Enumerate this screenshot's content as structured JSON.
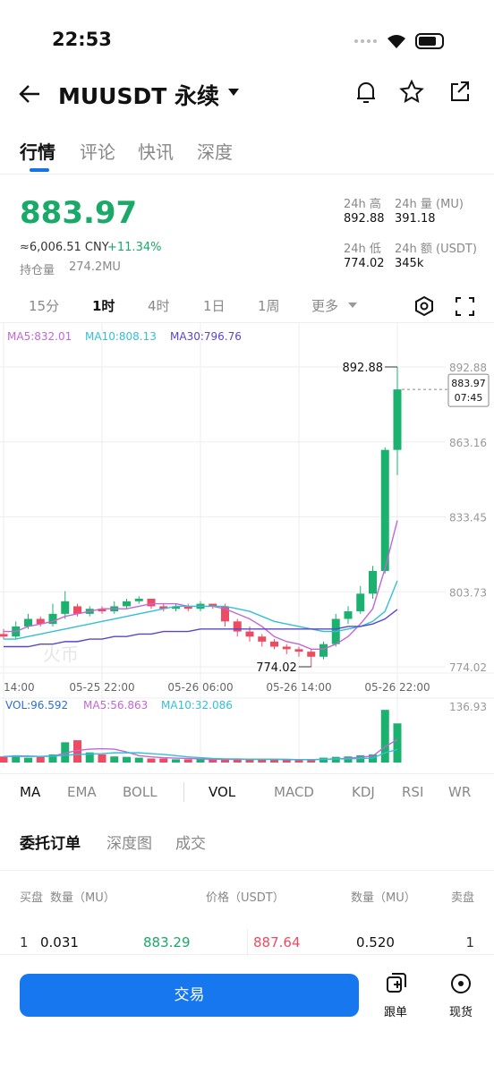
{
  "status_bar": {
    "time": "22:53"
  },
  "header": {
    "title": "MUUSDT 永续"
  },
  "tabs": [
    "行情",
    "评论",
    "快讯",
    "深度"
  ],
  "ticker": {
    "price": "883.97",
    "cny": "≈6,006.51 CNY",
    "change": "+11.34%",
    "open_interest_label": "持仓量",
    "open_interest": "274.2MU",
    "stats": [
      {
        "label": "24h 高",
        "value": "892.88"
      },
      {
        "label": "24h 量 (MU)",
        "value": "391.18"
      },
      {
        "label": "24h 低",
        "value": "774.02"
      },
      {
        "label": "24h 额 (USDT)",
        "value": "345k"
      }
    ]
  },
  "intervals": [
    "15分",
    "1时",
    "4时",
    "1日",
    "1周",
    "更多"
  ],
  "chart_data": {
    "type": "candlestick",
    "categories": [
      "14:00",
      null,
      null,
      null,
      null,
      null,
      null,
      null,
      "05-25 22:00",
      null,
      null,
      null,
      null,
      null,
      null,
      null,
      "05-26 06:00",
      null,
      null,
      null,
      null,
      null,
      null,
      null,
      "05-26 14:00",
      null,
      null,
      null,
      null,
      null,
      null,
      null,
      "05-26 22:00"
    ],
    "open": [
      787,
      786,
      790,
      793,
      791,
      795,
      798,
      795,
      797,
      796,
      798,
      800,
      801,
      798,
      797,
      798,
      797,
      799,
      798,
      792,
      788,
      786,
      784,
      782,
      781,
      780,
      778,
      783,
      793,
      796,
      803,
      812,
      860
    ],
    "high": [
      789,
      792,
      795,
      794,
      799,
      804,
      799,
      798,
      798,
      800,
      801,
      802,
      801,
      799,
      799,
      799,
      800,
      799,
      799,
      793,
      790,
      787,
      785,
      783,
      782,
      781,
      784,
      795,
      798,
      806,
      814,
      861,
      892.88
    ],
    "low": [
      785,
      785,
      789,
      790,
      790,
      793,
      794,
      794,
      795,
      795,
      797,
      799,
      797,
      796,
      796,
      796,
      796,
      797,
      790,
      786,
      784,
      782,
      781,
      779,
      778,
      774.02,
      777,
      782,
      791,
      795,
      801,
      811,
      850
    ],
    "close": [
      786,
      790,
      793,
      791,
      795,
      800,
      795,
      797,
      796,
      798,
      800,
      801,
      798,
      797,
      798,
      797,
      799,
      798,
      792,
      788,
      786,
      784,
      782,
      781,
      780,
      778,
      783,
      793,
      796,
      803,
      812,
      860,
      883.97
    ],
    "up_color": "#1bb16f",
    "down_color": "#ee4b62",
    "series": [
      {
        "name": "MA5:832.01",
        "color": "#c366d6",
        "values": [
          788,
          788,
          790,
          791,
          792,
          794,
          795,
          796,
          797,
          797,
          797,
          798,
          799,
          799,
          799,
          798,
          798,
          798,
          797,
          795,
          793,
          790,
          786,
          784,
          783,
          781,
          781,
          783,
          786,
          791,
          797,
          813,
          832.01
        ]
      },
      {
        "name": "MA10:808.13",
        "color": "#33bfd6",
        "values": [
          785,
          785,
          786,
          787,
          788,
          789,
          790,
          791,
          792,
          793,
          794,
          795,
          796,
          797,
          798,
          798,
          798,
          798,
          798,
          797,
          796,
          794,
          792,
          791,
          790,
          789,
          788,
          788,
          789,
          790,
          792,
          796,
          808.13
        ]
      },
      {
        "name": "MA30:796.76",
        "color": "#5846cf",
        "values": [
          782,
          782,
          782,
          783,
          783,
          784,
          784,
          785,
          785,
          786,
          786,
          787,
          787,
          788,
          788,
          788,
          789,
          789,
          789,
          789,
          789,
          789,
          789,
          789,
          789,
          789,
          789,
          789,
          790,
          790,
          791,
          793,
          796.76
        ]
      }
    ],
    "ylim": [
      774.02,
      892.88
    ],
    "yticks": [
      774.02,
      803.73,
      833.45,
      863.16,
      892.88
    ],
    "high_label": "892.88",
    "low_label": "774.02",
    "last_price": "883.97",
    "countdown": "07:45",
    "watermark": "火币",
    "volume": {
      "name": "VOL:96.592",
      "values": [
        15,
        18,
        12,
        14,
        20,
        50,
        55,
        25,
        20,
        15,
        14,
        12,
        10,
        10,
        8,
        8,
        8,
        8,
        10,
        8,
        8,
        7,
        7,
        7,
        6,
        8,
        12,
        14,
        15,
        18,
        20,
        130,
        96.592
      ],
      "ylim": [
        0,
        136.93
      ],
      "yticks": [
        136.93
      ],
      "series": [
        {
          "name": "MA5:56.863",
          "color": "#c366d6",
          "values": [
            15,
            16,
            16,
            15,
            16,
            23,
            30,
            33,
            34,
            33,
            26,
            17,
            14,
            12,
            11,
            10,
            9,
            8,
            8,
            8,
            8,
            8,
            8,
            7,
            7,
            7,
            8,
            9,
            11,
            13,
            16,
            39,
            56.863
          ]
        },
        {
          "name": "MA10:32.086",
          "color": "#33bfd6",
          "values": [
            15,
            15,
            15,
            15,
            16,
            18,
            20,
            21,
            22,
            24,
            24,
            24,
            22,
            20,
            17,
            14,
            12,
            10,
            9,
            9,
            8,
            8,
            8,
            8,
            7,
            7,
            8,
            9,
            9,
            10,
            11,
            24,
            32.086
          ]
        }
      ]
    }
  },
  "indicators": [
    "MA",
    "EMA",
    "BOLL",
    "VOL",
    "MACD",
    "KDJ",
    "RSI",
    "WR"
  ],
  "order_tabs": [
    "委托订单",
    "深度图",
    "成交"
  ],
  "order_book": {
    "headers": [
      "买盘",
      "数量（MU）",
      "价格（USDT）",
      "数量（MU）",
      "卖盘"
    ],
    "rows": [
      [
        "1",
        "0.031",
        "883.29",
        "887.64",
        "0.520",
        "1"
      ]
    ]
  },
  "footer": {
    "trade": "交易",
    "copy": "跟单",
    "spot": "现货"
  }
}
